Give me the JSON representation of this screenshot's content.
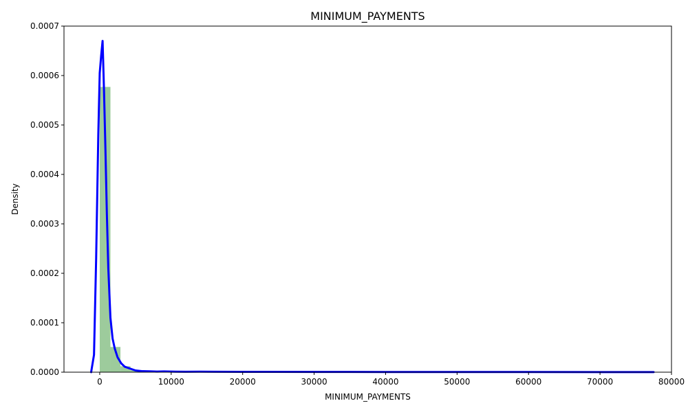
{
  "chart_data": {
    "type": "bar",
    "title": "MINIMUM_PAYMENTS",
    "xlabel": "MINIMUM_PAYMENTS",
    "ylabel": "Density",
    "xlim": [
      -5000,
      80000
    ],
    "ylim": [
      0,
      0.0007
    ],
    "x_ticks": [
      0,
      10000,
      20000,
      30000,
      40000,
      50000,
      60000,
      70000,
      80000
    ],
    "x_tick_labels": [
      "0",
      "10000",
      "20000",
      "30000",
      "40000",
      "50000",
      "60000",
      "70000",
      "80000"
    ],
    "y_ticks": [
      0,
      0.0001,
      0.0002,
      0.0003,
      0.0004,
      0.0005,
      0.0006,
      0.0007
    ],
    "y_tick_labels": [
      "0.0000",
      "0.0001",
      "0.0002",
      "0.0003",
      "0.0004",
      "0.0005",
      "0.0006",
      "0.0007"
    ],
    "grid": false,
    "histogram": {
      "color": "#9dcb9c",
      "bins": [
        {
          "x0": 0,
          "x1": 1500,
          "density": 0.000577
        },
        {
          "x0": 1500,
          "x1": 2900,
          "density": 5.1e-05
        },
        {
          "x0": 2900,
          "x1": 4300,
          "density": 1.2e-05
        },
        {
          "x0": 4300,
          "x1": 5800,
          "density": 4e-06
        },
        {
          "x0": 5800,
          "x1": 7200,
          "density": 2e-06
        },
        {
          "x0": 7200,
          "x1": 8600,
          "density": 1e-06
        }
      ]
    },
    "kde": {
      "color": "#0000ff",
      "x": [
        -1200,
        -800,
        -500,
        -200,
        0,
        200,
        400,
        600,
        800,
        1000,
        1200,
        1500,
        1800,
        2100,
        2500,
        3000,
        3500,
        4000,
        5000,
        6000,
        7000,
        8000,
        9000,
        10000,
        12000,
        14000,
        16000,
        20000,
        30000,
        40000,
        50000,
        60000,
        70000,
        77500
      ],
      "y": [
        0,
        3.5e-05,
        0.00023,
        0.00048,
        0.000605,
        0.00064,
        0.00067,
        0.00057,
        0.00045,
        0.00032,
        0.00021,
        0.00011,
        6.8e-05,
        4.8e-05,
        3e-05,
        1.8e-05,
        1.1e-05,
        8.5e-06,
        3.5e-06,
        2e-06,
        1.8e-06,
        1.2e-06,
        1.5e-06,
        1.2e-06,
        9e-07,
        1.1e-06,
        8e-07,
        7e-07,
        5e-07,
        4e-07,
        3e-07,
        3e-07,
        2e-07,
        2e-07
      ]
    }
  }
}
